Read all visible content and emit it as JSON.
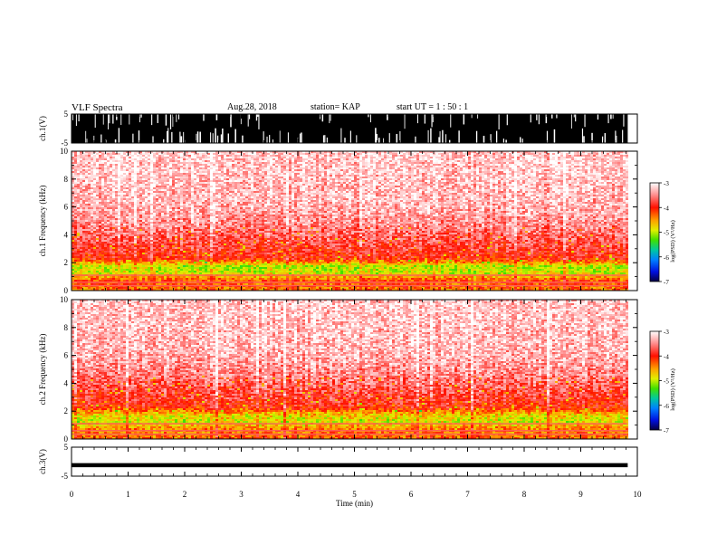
{
  "header": {
    "title": "VLF Spectra",
    "date": "Aug.28, 2018",
    "station": "station= KAP",
    "start": "start UT = 1 : 50 : 1"
  },
  "colors": {
    "colormap": [
      "#08006a",
      "#0040ff",
      "#00c0ff",
      "#00e070",
      "#70f000",
      "#e0f000",
      "#ffc000",
      "#ff6000",
      "#ff2000",
      "#ff6060",
      "#ffd8d8",
      "#ffffff"
    ],
    "trace": "#000000"
  },
  "chart_data": [
    {
      "id": "ch1-waveform",
      "type": "line",
      "title": "",
      "xlabel": "",
      "ylabel": "ch.1(V)",
      "xlim": [
        0,
        10
      ],
      "ylim": [
        -5,
        5
      ],
      "yticks": [
        "5",
        "-5"
      ],
      "x": [
        0,
        0.5,
        1,
        1.5,
        2,
        2.5,
        3,
        3.5,
        4,
        4.5,
        5,
        5.5,
        6,
        6.5,
        7,
        7.5,
        8,
        8.5,
        9,
        9.5,
        9.83
      ],
      "envelope_max": [
        5,
        5,
        5,
        5,
        5,
        5,
        5,
        5,
        5,
        5,
        5,
        5,
        5,
        5,
        5,
        5,
        5,
        5,
        5,
        5,
        5
      ],
      "envelope_min": [
        -5,
        -5,
        -5,
        -5,
        -5,
        -5,
        -5,
        -5,
        -5,
        -5,
        -5,
        -5,
        -5,
        -5,
        -5,
        -5,
        -5,
        -5,
        -5,
        -5,
        -5
      ],
      "note": "saturated"
    },
    {
      "id": "ch1-spectrogram",
      "type": "heatmap",
      "title": "",
      "xlabel": "",
      "ylabel": "ch.1 Frequency (kHz)",
      "xlim": [
        0,
        10
      ],
      "ylim": [
        0,
        10
      ],
      "yticks": [
        "0",
        "2",
        "4",
        "6",
        "8",
        "10"
      ],
      "data_extent_x": [
        0,
        9.83
      ],
      "freq_kHz": [
        0.25,
        0.75,
        1.25,
        1.75,
        2.25,
        2.75,
        3.25,
        3.75,
        4.25,
        4.75,
        5.5,
        6.5,
        7.5,
        8.5,
        9.5
      ],
      "log_psd": [
        -4.3,
        -4.2,
        -4.9,
        -5.0,
        -4.0,
        -3.9,
        -3.8,
        -3.7,
        -3.6,
        -3.5,
        -3.4,
        -3.3,
        -3.3,
        -3.25,
        -3.25
      ],
      "colorbar": {
        "label": "log(PSD) (V²/Hz)",
        "range": [
          -7,
          -3
        ],
        "ticks": [
          "-3",
          "-4",
          "-5",
          "-6",
          "-7"
        ]
      }
    },
    {
      "id": "ch2-spectrogram",
      "type": "heatmap",
      "title": "",
      "xlabel": "",
      "ylabel": "ch.2 Frequency (kHz)",
      "xlim": [
        0,
        10
      ],
      "ylim": [
        0,
        10
      ],
      "yticks": [
        "0",
        "2",
        "4",
        "6",
        "8",
        "10"
      ],
      "data_extent_x": [
        0,
        9.83
      ],
      "freq_kHz": [
        0.25,
        0.75,
        1.25,
        1.75,
        2.25,
        2.75,
        3.25,
        3.75,
        4.25,
        4.75,
        5.5,
        6.5,
        7.5,
        8.5,
        9.5
      ],
      "log_psd": [
        -4.3,
        -4.4,
        -4.9,
        -4.7,
        -4.0,
        -3.9,
        -3.8,
        -3.7,
        -3.6,
        -3.5,
        -3.4,
        -3.3,
        -3.3,
        -3.25,
        -3.25
      ],
      "colorbar": {
        "label": "log(PSD) (V²/Hz)",
        "range": [
          -7,
          -3
        ],
        "ticks": [
          "-3",
          "-4",
          "-5",
          "-6",
          "-7"
        ]
      }
    },
    {
      "id": "ch3-waveform",
      "type": "line",
      "title": "",
      "xlabel": "Time (min)",
      "ylabel": "ch.3(V)",
      "xlim": [
        0,
        10
      ],
      "ylim": [
        -5,
        5
      ],
      "yticks": [
        "5",
        "-5"
      ],
      "xticks": [
        "0",
        "1",
        "2",
        "3",
        "4",
        "5",
        "6",
        "7",
        "8",
        "9",
        "10"
      ],
      "x": [
        0,
        1,
        2,
        3,
        4,
        5,
        6,
        7,
        8,
        9,
        9.83
      ],
      "y": [
        -1.2,
        -1.2,
        -1.2,
        -1.2,
        -1.2,
        -1.2,
        -1.2,
        -1.2,
        -1.2,
        -1.2,
        -1.2
      ]
    }
  ]
}
